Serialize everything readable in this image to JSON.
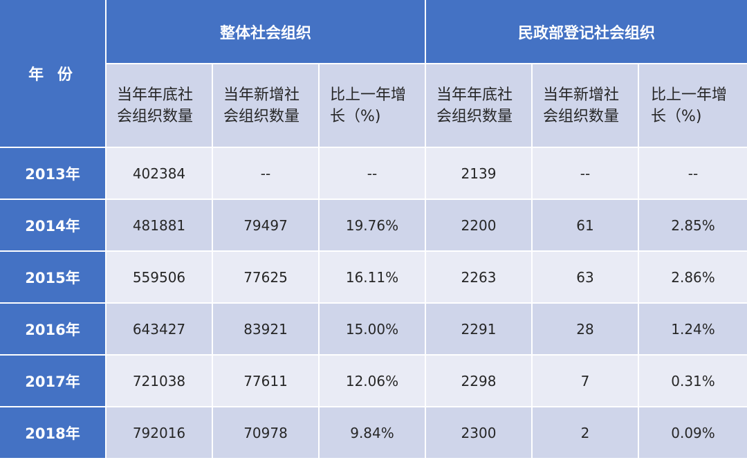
{
  "table": {
    "year_header": "年 份",
    "groups": [
      "整体社会组织",
      "民政部登记社会组织"
    ],
    "sub_headers": [
      "当年年底社会组织数量",
      "当年新增社会组织数量",
      "比上一年增长（%)",
      "当年年底社会组织数量",
      "当年新增社会组织数量",
      "比上一年增长（%)"
    ],
    "rows": [
      {
        "year": "2013年",
        "values": [
          "402384",
          "--",
          "--",
          "2139",
          "--",
          "--"
        ]
      },
      {
        "year": "2014年",
        "values": [
          "481881",
          "79497",
          "19.76%",
          "2200",
          "61",
          "2.85%"
        ]
      },
      {
        "year": "2015年",
        "values": [
          "559506",
          "77625",
          "16.11%",
          "2263",
          "63",
          "2.86%"
        ]
      },
      {
        "year": "2016年",
        "values": [
          "643427",
          "83921",
          "15.00%",
          "2291",
          "28",
          "1.24%"
        ]
      },
      {
        "year": "2017年",
        "values": [
          "721038",
          "77611",
          "12.06%",
          "2298",
          "7",
          "0.31%"
        ]
      },
      {
        "year": "2018年",
        "values": [
          "792016",
          "70978",
          "9.84%",
          "2300",
          "2",
          "0.09%"
        ]
      }
    ]
  },
  "colors": {
    "header_blue": "#4472c4",
    "band_dark": "#cfd5ea",
    "band_light": "#e9ebf5",
    "header_text": "#ffffff",
    "body_text": "#262626"
  }
}
